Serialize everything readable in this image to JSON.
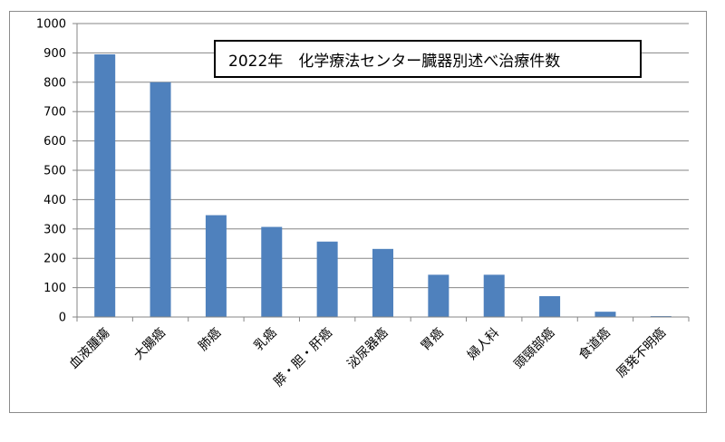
{
  "chart_data": {
    "type": "bar",
    "title": "2022年　化学療法センター臓器別述べ治療件数",
    "categories": [
      "血液腫瘍",
      "大腸癌",
      "肺癌",
      "乳癌",
      "膵・胆・肝癌",
      "泌尿器癌",
      "胃癌",
      "婦人科",
      "頭頸部癌",
      "食道癌",
      "原発不明癌"
    ],
    "values": [
      895,
      800,
      347,
      307,
      257,
      232,
      144,
      144,
      71,
      18,
      3
    ],
    "ylim": [
      0,
      1000
    ],
    "yticks": [
      "0",
      "100",
      "200",
      "300",
      "400",
      "500",
      "600",
      "700",
      "800",
      "900",
      "1000"
    ],
    "grid": true,
    "legend": "none",
    "bar_color": "#4f81bd",
    "grid_color": "#868686"
  }
}
